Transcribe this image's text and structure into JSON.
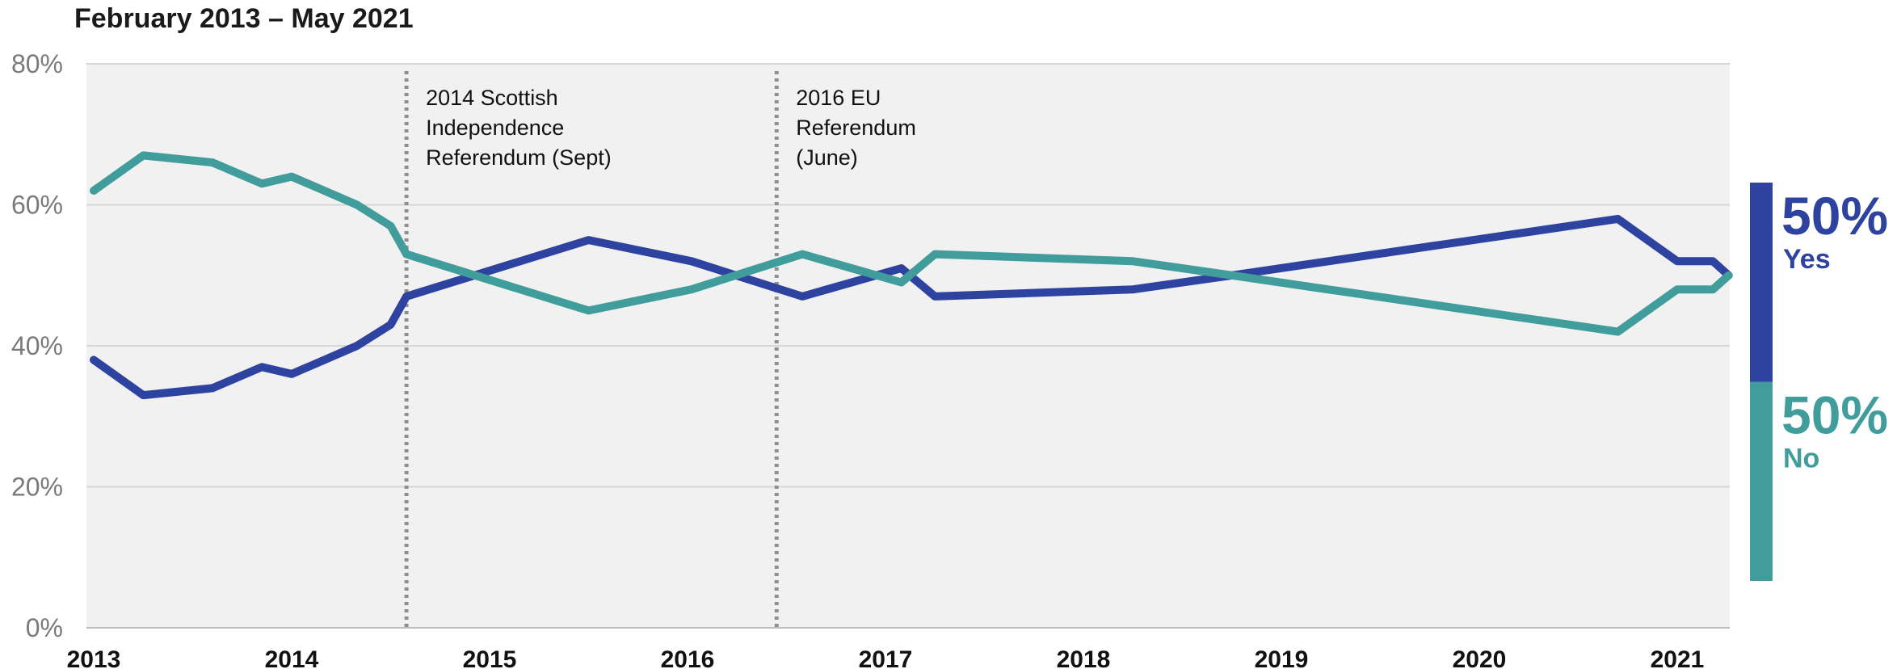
{
  "chart_data": {
    "type": "line",
    "title": "February 2013 – May 2021",
    "ylim": [
      0,
      80
    ],
    "yticks": [
      "0%",
      "20%",
      "40%",
      "60%",
      "80%"
    ],
    "xlim": [
      2013,
      2021.3
    ],
    "xticks": [
      "2013",
      "2014",
      "2015",
      "2016",
      "2017",
      "2018",
      "2019",
      "2020",
      "2021"
    ],
    "grid": true,
    "legend_placement": "right",
    "series": [
      {
        "name": "Yes",
        "color": "#2e43a0",
        "end_value": "50%",
        "points": [
          [
            2013.0,
            38
          ],
          [
            2013.25,
            33
          ],
          [
            2013.6,
            34
          ],
          [
            2013.85,
            37
          ],
          [
            2014.0,
            36
          ],
          [
            2014.33,
            40
          ],
          [
            2014.5,
            43
          ],
          [
            2014.58,
            47
          ],
          [
            2015.5,
            55
          ],
          [
            2016.02,
            52
          ],
          [
            2016.58,
            47
          ],
          [
            2017.08,
            51
          ],
          [
            2017.25,
            47
          ],
          [
            2018.25,
            48
          ],
          [
            2018.75,
            50
          ],
          [
            2020.7,
            58
          ],
          [
            2020.8,
            56
          ],
          [
            2021.0,
            52
          ],
          [
            2021.18,
            52
          ],
          [
            2021.26,
            50
          ]
        ]
      },
      {
        "name": "No",
        "color": "#409d9b",
        "end_value": "50%",
        "points": [
          [
            2013.0,
            62
          ],
          [
            2013.25,
            67
          ],
          [
            2013.6,
            66
          ],
          [
            2013.85,
            63
          ],
          [
            2014.0,
            64
          ],
          [
            2014.33,
            60
          ],
          [
            2014.5,
            57
          ],
          [
            2014.58,
            53
          ],
          [
            2015.5,
            45
          ],
          [
            2016.02,
            48
          ],
          [
            2016.58,
            53
          ],
          [
            2017.08,
            49
          ],
          [
            2017.25,
            53
          ],
          [
            2018.25,
            52
          ],
          [
            2018.75,
            50
          ],
          [
            2020.7,
            42
          ],
          [
            2020.8,
            44
          ],
          [
            2021.0,
            48
          ],
          [
            2021.18,
            48
          ],
          [
            2021.26,
            50
          ]
        ]
      }
    ],
    "annotations": [
      {
        "x": 2014.58,
        "lines": [
          "2014 Scottish",
          "Independence",
          "Referendum (Sept)"
        ]
      },
      {
        "x": 2016.45,
        "lines": [
          "2016 EU",
          "Referendum",
          "(June)"
        ]
      }
    ]
  }
}
